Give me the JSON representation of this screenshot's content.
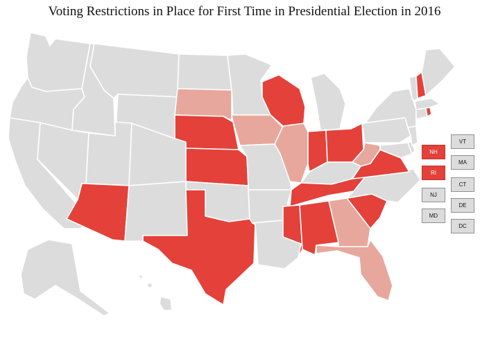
{
  "title": "Voting Restrictions in Place for First Time in Presidential Election in 2016",
  "colors": {
    "new_restriction": "#e3413a",
    "new_restriction_light": "#e8a79c",
    "no_new_restriction": "#dcdcdc",
    "border": "#ffffff"
  },
  "small_states": [
    {
      "abbr": "NH",
      "status": "new_restriction"
    },
    {
      "abbr": "RI",
      "status": "new_restriction"
    },
    {
      "abbr": "NJ",
      "status": "none"
    },
    {
      "abbr": "MD",
      "status": "none"
    },
    {
      "abbr": "VT",
      "status": "none"
    },
    {
      "abbr": "MA",
      "status": "none"
    },
    {
      "abbr": "CT",
      "status": "none"
    },
    {
      "abbr": "DE",
      "status": "none"
    },
    {
      "abbr": "DC",
      "status": "none"
    }
  ],
  "states": [
    {
      "abbr": "WA",
      "status": "none"
    },
    {
      "abbr": "OR",
      "status": "none"
    },
    {
      "abbr": "CA",
      "status": "none"
    },
    {
      "abbr": "ID",
      "status": "none"
    },
    {
      "abbr": "NV",
      "status": "none"
    },
    {
      "abbr": "MT",
      "status": "none"
    },
    {
      "abbr": "WY",
      "status": "none"
    },
    {
      "abbr": "UT",
      "status": "none"
    },
    {
      "abbr": "AZ",
      "status": "new_restriction"
    },
    {
      "abbr": "CO",
      "status": "none"
    },
    {
      "abbr": "NM",
      "status": "none"
    },
    {
      "abbr": "ND",
      "status": "none"
    },
    {
      "abbr": "SD",
      "status": "new_restriction_light"
    },
    {
      "abbr": "NE",
      "status": "new_restriction"
    },
    {
      "abbr": "KS",
      "status": "new_restriction"
    },
    {
      "abbr": "OK",
      "status": "none"
    },
    {
      "abbr": "TX",
      "status": "new_restriction"
    },
    {
      "abbr": "MN",
      "status": "none"
    },
    {
      "abbr": "IA",
      "status": "new_restriction_light"
    },
    {
      "abbr": "MO",
      "status": "none"
    },
    {
      "abbr": "AR",
      "status": "none"
    },
    {
      "abbr": "LA",
      "status": "none"
    },
    {
      "abbr": "WI",
      "status": "new_restriction"
    },
    {
      "abbr": "IL",
      "status": "new_restriction_light"
    },
    {
      "abbr": "MI",
      "status": "none"
    },
    {
      "abbr": "IN",
      "status": "new_restriction"
    },
    {
      "abbr": "OH",
      "status": "new_restriction"
    },
    {
      "abbr": "KY",
      "status": "none"
    },
    {
      "abbr": "TN",
      "status": "new_restriction"
    },
    {
      "abbr": "MS",
      "status": "new_restriction"
    },
    {
      "abbr": "AL",
      "status": "new_restriction"
    },
    {
      "abbr": "GA",
      "status": "new_restriction_light"
    },
    {
      "abbr": "FL",
      "status": "new_restriction_light"
    },
    {
      "abbr": "SC",
      "status": "new_restriction"
    },
    {
      "abbr": "NC",
      "status": "none"
    },
    {
      "abbr": "VA",
      "status": "new_restriction"
    },
    {
      "abbr": "WV",
      "status": "new_restriction_light"
    },
    {
      "abbr": "PA",
      "status": "none"
    },
    {
      "abbr": "NY",
      "status": "none"
    },
    {
      "abbr": "ME",
      "status": "none"
    },
    {
      "abbr": "NH",
      "status": "new_restriction"
    },
    {
      "abbr": "VT",
      "status": "none"
    },
    {
      "abbr": "MA",
      "status": "none"
    },
    {
      "abbr": "RI",
      "status": "new_restriction"
    },
    {
      "abbr": "CT",
      "status": "none"
    },
    {
      "abbr": "NJ",
      "status": "none"
    },
    {
      "abbr": "DE",
      "status": "none"
    },
    {
      "abbr": "MD",
      "status": "none"
    },
    {
      "abbr": "AK",
      "status": "none"
    },
    {
      "abbr": "HI",
      "status": "none"
    }
  ]
}
